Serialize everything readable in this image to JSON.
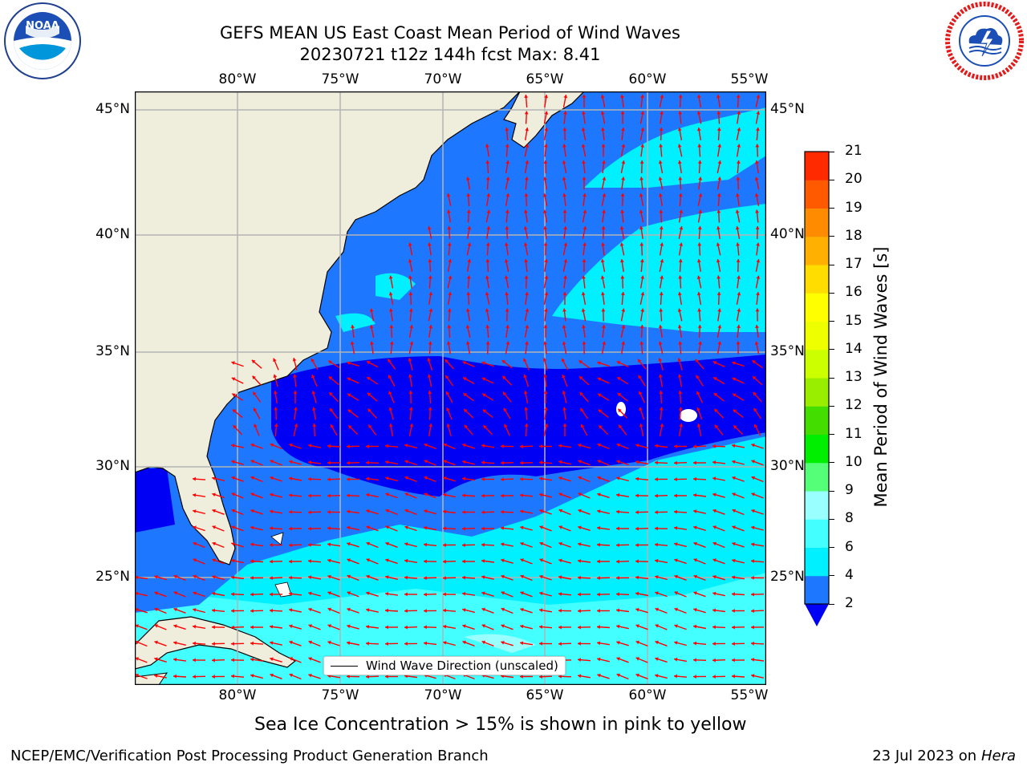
{
  "header": {
    "title_line1": "GEFS MEAN US East Coast Mean Period of Wind Waves",
    "title_line2": "20230721 t12z 144h fcst   Max: 8.41"
  },
  "logos": {
    "noaa_text": "NOAA",
    "noaa_ring_text": "NATIONAL OCEANIC AND ATMOSPHERIC ADMINISTRATION · U.S. DEPARTMENT OF COMMERCE",
    "nws_ring_text": "NATIONAL WEATHER SERVICE"
  },
  "map": {
    "lon_labels": [
      "80°W",
      "75°W",
      "70°W",
      "65°W",
      "60°W",
      "55°W"
    ],
    "lat_labels": [
      "45°N",
      "40°N",
      "35°N",
      "30°N",
      "25°N"
    ],
    "legend_label": "Wind Wave Direction (unscaled)",
    "colors": {
      "land": "#efeedd",
      "ocean_level_2_4": "#1e78ff",
      "ocean_below_2": "#0000f5",
      "ocean_level_4_6": "#00f0ff",
      "ocean_level_6_8": "#44ffff",
      "ocean_level_8_9": "#99ffff",
      "grid": "#b4b4b4",
      "arrow": "#ff0000",
      "coast": "#000000"
    }
  },
  "colorbar": {
    "label": "Mean Period of Wind Waves [s]",
    "ticks": [
      "2",
      "4",
      "6",
      "8",
      "9",
      "10",
      "11",
      "12",
      "13",
      "14",
      "15",
      "16",
      "17",
      "18",
      "19",
      "20",
      "21"
    ],
    "colors": [
      "#1e78ff",
      "#00f0ff",
      "#44ffff",
      "#99ffff",
      "#55ff77",
      "#00ee00",
      "#44dd00",
      "#99ee00",
      "#ccff00",
      "#eeff00",
      "#ffff00",
      "#ffdd00",
      "#ffb000",
      "#ff8c00",
      "#ff5a00",
      "#ff2a00"
    ],
    "under_color": "#0000f5"
  },
  "note": "Sea Ice Concentration > 15% is shown in pink to yellow",
  "footer": {
    "left": "NCEP/EMC/Verification Post Processing Product Generation Branch",
    "date": "23 Jul 2023 on ",
    "machine": "Hera"
  }
}
